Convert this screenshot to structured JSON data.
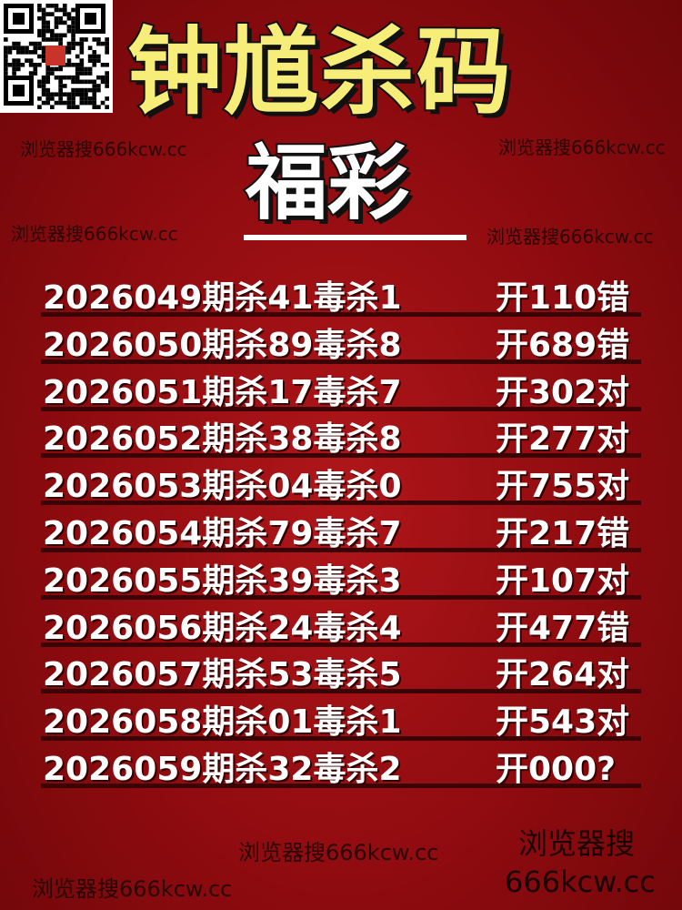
{
  "header": {
    "title": "钟馗杀码",
    "subtitle": "福彩"
  },
  "watermarks": [
    "浏览器搜666kcw.cc",
    "浏览器搜666kcw.cc",
    "浏览器搜666kcw.cc",
    "浏览器搜666kcw.cc",
    "浏览器搜666kcw.cc",
    "浏览器搜666kcw.cc"
  ],
  "footer": {
    "line1": "浏览器搜",
    "line2": "666kcw.cc"
  },
  "rows": [
    {
      "left": "2026049期杀41毒杀1",
      "right": "开110错"
    },
    {
      "left": "2026050期杀89毒杀8",
      "right": "开689错"
    },
    {
      "left": "2026051期杀17毒杀7",
      "right": "开302对"
    },
    {
      "left": "2026052期杀38毒杀8",
      "right": "开277对"
    },
    {
      "left": "2026053期杀04毒杀0",
      "right": "开755对"
    },
    {
      "left": "2026054期杀79毒杀7",
      "right": "开217错"
    },
    {
      "left": "2026055期杀39毒杀3",
      "right": "开107对"
    },
    {
      "left": "2026056期杀24毒杀4",
      "right": "开477错"
    },
    {
      "left": "2026057期杀53毒杀5",
      "right": "开264对"
    },
    {
      "left": "2026058期杀01毒杀1",
      "right": "开543对"
    },
    {
      "left": "2026059期杀32毒杀2",
      "right": "开000?"
    }
  ]
}
